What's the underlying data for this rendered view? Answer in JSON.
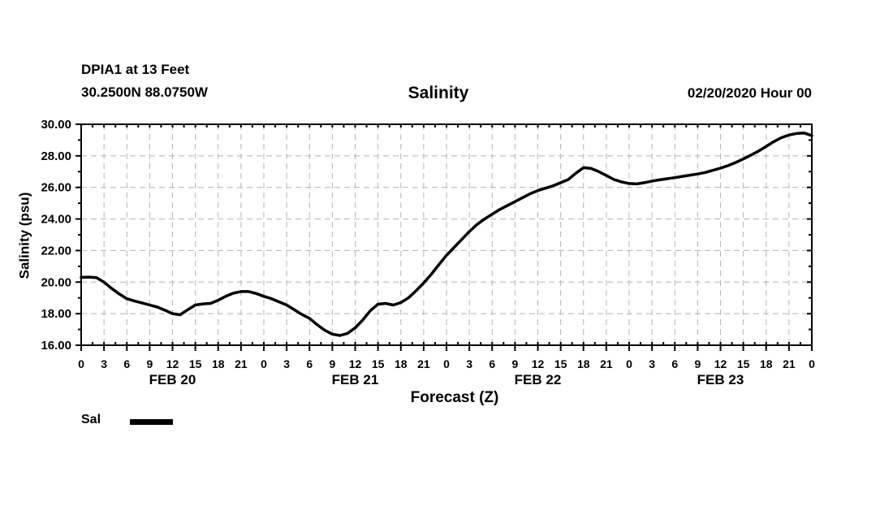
{
  "header": {
    "station": "DPIA1 at 13 Feet",
    "coordinates": "30.2500N 88.0750W",
    "title": "Salinity",
    "run_datetime": "02/20/2020 Hour 00"
  },
  "axes": {
    "y_label": "Salinity (psu)",
    "x_label": "Forecast (Z)"
  },
  "legend": {
    "label": "Sal",
    "swatch_color": "#000000"
  },
  "colors": {
    "line": "#000000",
    "frame": "#000000",
    "grid": "#b3b3b3",
    "background": "#ffffff",
    "text": "#000000"
  },
  "chart_data": {
    "type": "line",
    "title": "Salinity",
    "xlabel": "Forecast (Z)",
    "ylabel": "Salinity (psu)",
    "xlim": [
      0,
      96
    ],
    "ylim": [
      16,
      30
    ],
    "grid": "dashed",
    "legend_position": "bottom-left",
    "x_major_tick_interval_hours": 3,
    "x_minor_tick_interval_hours": 1.5,
    "x_tick_hours": [
      0,
      3,
      6,
      9,
      12,
      15,
      18,
      21,
      24,
      27,
      30,
      33,
      36,
      39,
      42,
      45,
      48,
      51,
      54,
      57,
      60,
      63,
      66,
      69,
      72,
      75,
      78,
      81,
      84,
      87,
      90,
      93,
      96
    ],
    "x_tick_labels": [
      "0",
      "3",
      "6",
      "9",
      "12",
      "15",
      "18",
      "21",
      "0",
      "3",
      "6",
      "9",
      "12",
      "15",
      "18",
      "21",
      "0",
      "3",
      "6",
      "9",
      "12",
      "15",
      "18",
      "21",
      "0",
      "3",
      "6",
      "9",
      "12",
      "15",
      "18",
      "21",
      "0"
    ],
    "day_labels": [
      {
        "text": "FEB 20",
        "hour": 12
      },
      {
        "text": "FEB 21",
        "hour": 36
      },
      {
        "text": "FEB 22",
        "hour": 60
      },
      {
        "text": "FEB 23",
        "hour": 84
      }
    ],
    "y_tick_values": [
      16,
      18,
      20,
      22,
      24,
      26,
      28,
      30
    ],
    "y_tick_labels": [
      "16.00",
      "18.00",
      "20.00",
      "22.00",
      "24.00",
      "26.00",
      "28.00",
      "30.00"
    ],
    "y_minor_tick_values": [
      17,
      19,
      21,
      23,
      25,
      27,
      29
    ],
    "series": [
      {
        "name": "Sal",
        "color": "#000000",
        "line_width": 3.5,
        "x_hours": [
          0,
          1,
          2,
          3,
          4,
          5,
          6,
          7,
          8,
          9,
          10,
          11,
          12,
          13,
          14,
          15,
          16,
          17,
          18,
          19,
          20,
          21,
          22,
          23,
          24,
          25,
          26,
          27,
          28,
          29,
          30,
          31,
          32,
          33,
          34,
          35,
          36,
          37,
          38,
          39,
          40,
          41,
          42,
          43,
          44,
          45,
          46,
          47,
          48,
          49,
          50,
          51,
          52,
          53,
          54,
          55,
          56,
          57,
          58,
          59,
          60,
          61,
          62,
          63,
          64,
          65,
          66,
          67,
          68,
          69,
          70,
          71,
          72,
          73,
          74,
          75,
          76,
          77,
          78,
          79,
          80,
          81,
          82,
          83,
          84,
          85,
          86,
          87,
          88,
          89,
          90,
          91,
          92,
          93,
          94,
          95,
          96
        ],
        "values": [
          20.3,
          20.32,
          20.28,
          20.0,
          19.6,
          19.25,
          18.95,
          18.8,
          18.68,
          18.55,
          18.42,
          18.22,
          18.0,
          17.93,
          18.25,
          18.55,
          18.62,
          18.65,
          18.85,
          19.1,
          19.3,
          19.4,
          19.4,
          19.28,
          19.1,
          18.95,
          18.75,
          18.55,
          18.25,
          17.95,
          17.7,
          17.3,
          16.95,
          16.7,
          16.62,
          16.75,
          17.1,
          17.6,
          18.2,
          18.6,
          18.65,
          18.55,
          18.7,
          19.0,
          19.45,
          19.95,
          20.5,
          21.1,
          21.7,
          22.2,
          22.7,
          23.2,
          23.65,
          24.0,
          24.3,
          24.6,
          24.85,
          25.1,
          25.35,
          25.6,
          25.8,
          25.95,
          26.1,
          26.3,
          26.5,
          26.9,
          27.25,
          27.2,
          27.0,
          26.75,
          26.5,
          26.35,
          26.25,
          26.22,
          26.3,
          26.4,
          26.48,
          26.55,
          26.62,
          26.7,
          26.78,
          26.85,
          26.95,
          27.08,
          27.22,
          27.38,
          27.58,
          27.8,
          28.05,
          28.3,
          28.6,
          28.9,
          29.15,
          29.32,
          29.42,
          29.45,
          29.28
        ]
      }
    ]
  }
}
